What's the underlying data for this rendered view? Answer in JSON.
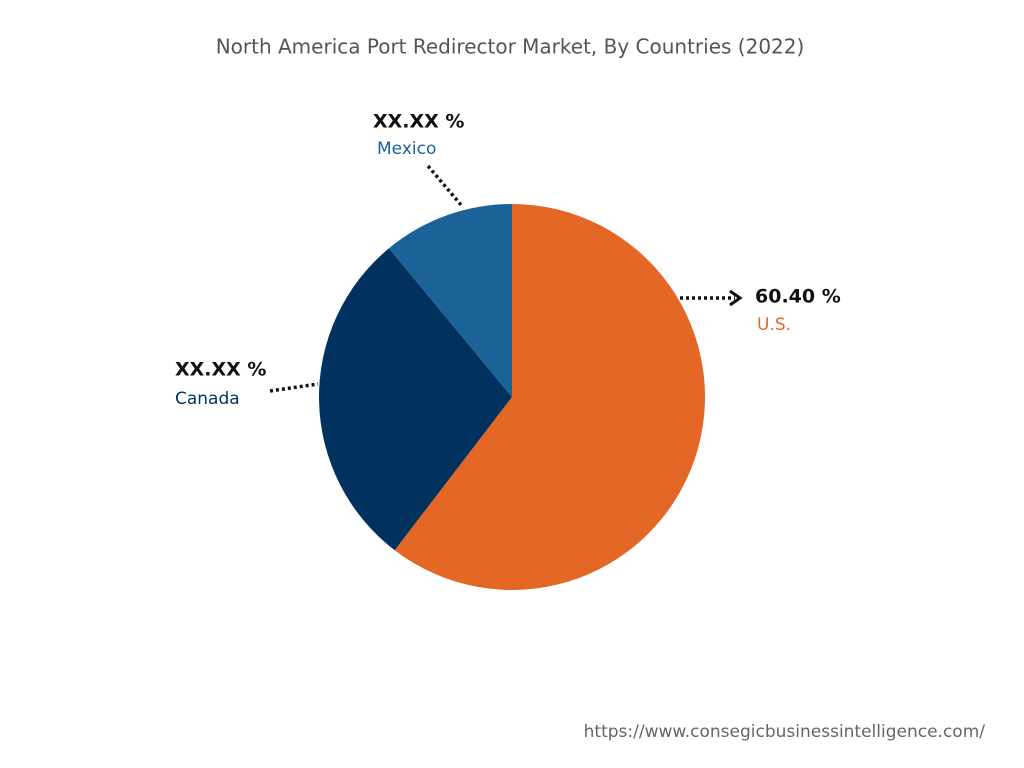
{
  "chart_data": {
    "type": "pie",
    "title": "North America Port Redirector Market, By Countries (2022)",
    "categories": [
      "U.S.",
      "Canada",
      "Mexico"
    ],
    "values": [
      60.4,
      28.6,
      11.0
    ],
    "value_labels": [
      "60.40 %",
      "XX.XX %",
      "XX.XX %"
    ],
    "colors": [
      "#e46726",
      "#01325f",
      "#1b6299"
    ],
    "source": "https://www.consegicbusinessintelligence.com/"
  }
}
